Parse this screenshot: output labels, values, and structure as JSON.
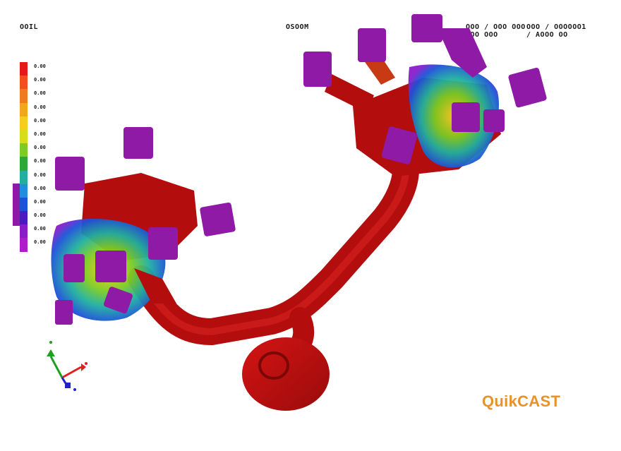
{
  "hud": {
    "left": "OOIL",
    "center": "OSOOM",
    "right_line1_a": "OOO / OOO OOO",
    "right_line1_b": "OOO / OOOOOO1",
    "right_line2_a": "OOO OOO",
    "right_line2_b": "/ AOOO OO"
  },
  "legend": {
    "colors": [
      "#e41a1a",
      "#f0501c",
      "#f07a1c",
      "#f2a61c",
      "#f5cc20",
      "#d8dc1e",
      "#7ccc22",
      "#2aa838",
      "#1fb0a0",
      "#1e8fe0",
      "#1c52d8",
      "#4a1cc0",
      "#8a1ccc",
      "#b01ccc"
    ],
    "labels": [
      "0.00",
      "0.00",
      "0.00",
      "0.00",
      "0.00",
      "0.00",
      "0.00",
      "0.00",
      "0.00",
      "0.00",
      "0.00",
      "0.00",
      "0.00",
      "0.00"
    ]
  },
  "brand": {
    "name": "QuikCAST",
    "color": "#e8922b"
  },
  "colors": {
    "casting_red": "#b30d0d",
    "feeder_purple": "#8e1aa5",
    "axis_x": "#e02020",
    "axis_y": "#20a020",
    "axis_z": "#2020d0"
  }
}
